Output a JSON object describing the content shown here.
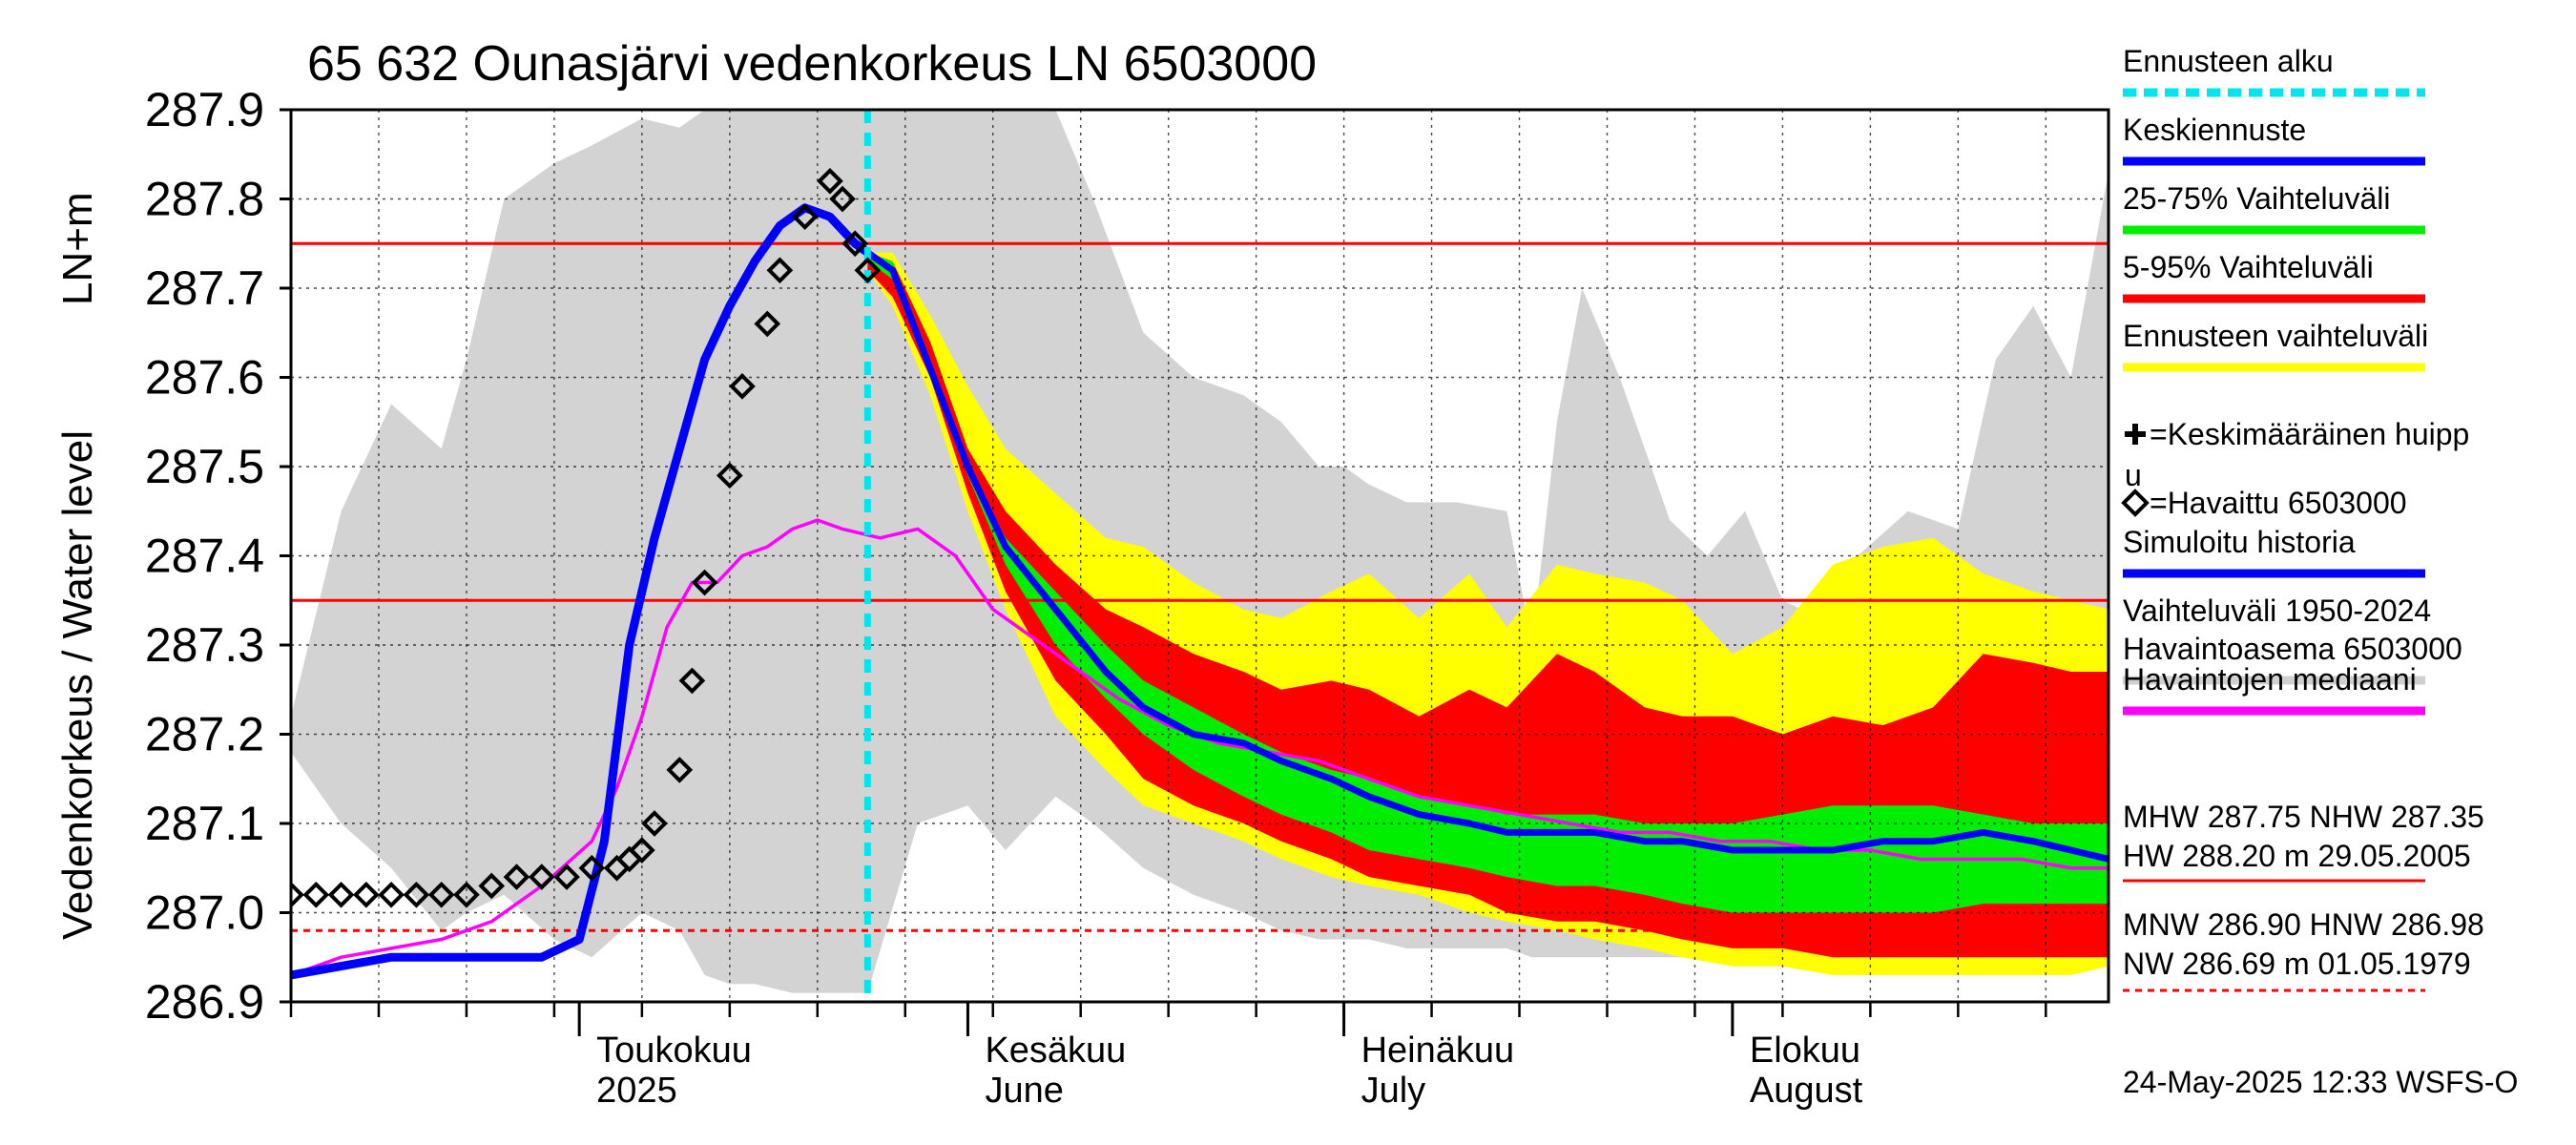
{
  "chart_data": {
    "type": "area",
    "title": "65 632 Ounasjärvi vedenkorkeus LN 6503000",
    "ylabel_line1": "LN+m",
    "ylabel_line2": "Vedenkorkeus / Water level",
    "ylim": [
      286.9,
      287.9
    ],
    "yticks": [
      "286.9",
      "287.0",
      "287.1",
      "287.2",
      "287.3",
      "287.4",
      "287.5",
      "287.6",
      "287.7",
      "287.8",
      "287.9"
    ],
    "xlim": [
      "2025-04-08",
      "2025-08-31"
    ],
    "month_labels": [
      {
        "date": "2025-05-01",
        "fi": "Toukokuu",
        "en": "2025"
      },
      {
        "date": "2025-06-01",
        "fi": "Kesäkuu",
        "en": "June"
      },
      {
        "date": "2025-07-01",
        "fi": "Heinäkuu",
        "en": "July"
      },
      {
        "date": "2025-08-01",
        "fi": "Elokuu",
        "en": "August"
      }
    ],
    "forecast_start": "2025-05-24",
    "reference_lines": [
      {
        "name": "MHW",
        "value": 287.75,
        "style": "solid"
      },
      {
        "name": "NHW",
        "value": 287.35,
        "style": "solid"
      },
      {
        "name": "HNW",
        "value": 286.98,
        "style": "dashed"
      }
    ],
    "series": [
      {
        "name": "Vaihteluväli 1950-2024 Havaintoasema 6503000",
        "kind": "band",
        "x": [
          "2025-04-08",
          "2025-04-12",
          "2025-04-16",
          "2025-04-20",
          "2025-04-22",
          "2025-04-25",
          "2025-04-29",
          "2025-05-02",
          "2025-05-06",
          "2025-05-09",
          "2025-05-11",
          "2025-05-13",
          "2025-05-15",
          "2025-05-18",
          "2025-05-21",
          "2025-05-24",
          "2025-05-28",
          "2025-06-01",
          "2025-06-04",
          "2025-06-06",
          "2025-06-08",
          "2025-06-11",
          "2025-06-15",
          "2025-06-19",
          "2025-06-23",
          "2025-06-26",
          "2025-06-29",
          "2025-07-01",
          "2025-07-03",
          "2025-07-06",
          "2025-07-10",
          "2025-07-14",
          "2025-07-16",
          "2025-07-18",
          "2025-07-20",
          "2025-07-23",
          "2025-07-27",
          "2025-07-30",
          "2025-08-02",
          "2025-08-05",
          "2025-08-08",
          "2025-08-11",
          "2025-08-15",
          "2025-08-19",
          "2025-08-22",
          "2025-08-25",
          "2025-08-28",
          "2025-08-31"
        ],
        "upper": [
          287.22,
          287.45,
          287.57,
          287.52,
          287.62,
          287.8,
          287.84,
          287.86,
          287.89,
          287.88,
          287.9,
          287.9,
          287.9,
          287.9,
          287.9,
          287.9,
          287.9,
          287.9,
          287.9,
          287.9,
          287.9,
          287.8,
          287.65,
          287.6,
          287.58,
          287.55,
          287.5,
          287.5,
          287.48,
          287.46,
          287.46,
          287.45,
          287.3,
          287.55,
          287.7,
          287.6,
          287.44,
          287.4,
          287.45,
          287.35,
          287.33,
          287.4,
          287.45,
          287.43,
          287.62,
          287.68,
          287.6,
          287.83
        ],
        "lower": [
          287.18,
          287.1,
          287.05,
          286.98,
          287.0,
          287.02,
          286.97,
          286.95,
          287.0,
          286.98,
          286.93,
          286.92,
          286.92,
          286.91,
          286.91,
          286.91,
          287.1,
          287.12,
          287.07,
          287.1,
          287.13,
          287.1,
          287.05,
          287.02,
          287.0,
          286.98,
          286.97,
          286.97,
          286.97,
          286.96,
          286.96,
          286.96,
          286.95,
          286.95,
          286.95,
          286.95,
          286.95,
          286.95,
          286.95,
          286.95,
          286.95,
          286.95,
          286.95,
          286.95,
          286.95,
          286.95,
          286.95,
          286.95
        ]
      },
      {
        "name": "Ennusteen vaihteluväli",
        "kind": "band",
        "x": [
          "2025-05-24",
          "2025-05-26",
          "2025-05-29",
          "2025-06-01",
          "2025-06-04",
          "2025-06-08",
          "2025-06-12",
          "2025-06-15",
          "2025-06-19",
          "2025-06-23",
          "2025-06-26",
          "2025-06-30",
          "2025-07-03",
          "2025-07-07",
          "2025-07-11",
          "2025-07-14",
          "2025-07-18",
          "2025-07-21",
          "2025-07-25",
          "2025-07-28",
          "2025-08-01",
          "2025-08-05",
          "2025-08-09",
          "2025-08-13",
          "2025-08-17",
          "2025-08-21",
          "2025-08-25",
          "2025-08-28",
          "2025-08-31"
        ],
        "upper": [
          287.74,
          287.74,
          287.67,
          287.59,
          287.52,
          287.47,
          287.42,
          287.41,
          287.37,
          287.34,
          287.33,
          287.36,
          287.38,
          287.33,
          287.38,
          287.32,
          287.39,
          287.38,
          287.37,
          287.35,
          287.29,
          287.32,
          287.39,
          287.41,
          287.42,
          287.38,
          287.36,
          287.35,
          287.34
        ],
        "lower": [
          287.72,
          287.68,
          287.58,
          287.45,
          287.34,
          287.22,
          287.16,
          287.12,
          287.1,
          287.08,
          287.06,
          287.04,
          287.03,
          287.02,
          287.0,
          286.99,
          286.98,
          286.97,
          286.96,
          286.95,
          286.94,
          286.94,
          286.93,
          286.93,
          286.93,
          286.93,
          286.93,
          286.93,
          286.94
        ]
      },
      {
        "name": "5-95% Vaihteluväli",
        "kind": "band",
        "x": [
          "2025-05-24",
          "2025-05-26",
          "2025-05-29",
          "2025-06-01",
          "2025-06-04",
          "2025-06-08",
          "2025-06-12",
          "2025-06-15",
          "2025-06-19",
          "2025-06-23",
          "2025-06-26",
          "2025-06-30",
          "2025-07-03",
          "2025-07-07",
          "2025-07-11",
          "2025-07-14",
          "2025-07-18",
          "2025-07-21",
          "2025-07-25",
          "2025-07-28",
          "2025-08-01",
          "2025-08-05",
          "2025-08-09",
          "2025-08-13",
          "2025-08-17",
          "2025-08-21",
          "2025-08-25",
          "2025-08-28",
          "2025-08-31"
        ],
        "upper": [
          287.74,
          287.73,
          287.64,
          287.52,
          287.45,
          287.39,
          287.34,
          287.32,
          287.29,
          287.27,
          287.25,
          287.26,
          287.25,
          287.22,
          287.25,
          287.23,
          287.29,
          287.27,
          287.23,
          287.22,
          287.22,
          287.2,
          287.22,
          287.21,
          287.23,
          287.29,
          287.28,
          287.27,
          287.27
        ],
        "lower": [
          287.72,
          287.69,
          287.6,
          287.47,
          287.36,
          287.26,
          287.2,
          287.15,
          287.12,
          287.1,
          287.08,
          287.06,
          287.04,
          287.03,
          287.02,
          287.0,
          286.99,
          286.99,
          286.98,
          286.97,
          286.96,
          286.96,
          286.95,
          286.95,
          286.95,
          286.95,
          286.95,
          286.95,
          286.95
        ]
      },
      {
        "name": "25-75% Vaihteluväli",
        "kind": "band",
        "x": [
          "2025-05-24",
          "2025-05-26",
          "2025-05-29",
          "2025-06-01",
          "2025-06-04",
          "2025-06-08",
          "2025-06-12",
          "2025-06-15",
          "2025-06-19",
          "2025-06-23",
          "2025-06-26",
          "2025-06-30",
          "2025-07-03",
          "2025-07-07",
          "2025-07-11",
          "2025-07-14",
          "2025-07-18",
          "2025-07-21",
          "2025-07-25",
          "2025-07-28",
          "2025-08-01",
          "2025-08-05",
          "2025-08-09",
          "2025-08-13",
          "2025-08-17",
          "2025-08-21",
          "2025-08-25",
          "2025-08-28",
          "2025-08-31"
        ],
        "upper": [
          287.74,
          287.73,
          287.62,
          287.5,
          287.42,
          287.36,
          287.3,
          287.26,
          287.23,
          287.2,
          287.18,
          287.16,
          287.15,
          287.13,
          287.12,
          287.11,
          287.11,
          287.11,
          287.1,
          287.1,
          287.1,
          287.11,
          287.12,
          287.12,
          287.12,
          287.11,
          287.1,
          287.1,
          287.1
        ],
        "lower": [
          287.73,
          287.71,
          287.6,
          287.49,
          287.39,
          287.3,
          287.24,
          287.2,
          287.16,
          287.13,
          287.11,
          287.09,
          287.07,
          287.06,
          287.05,
          287.04,
          287.03,
          287.03,
          287.02,
          287.01,
          287.0,
          287.0,
          287.0,
          287.0,
          287.0,
          287.01,
          287.01,
          287.01,
          287.01
        ]
      },
      {
        "name": "Havaintojen mediaani",
        "kind": "line",
        "x": [
          "2025-04-08",
          "2025-04-12",
          "2025-04-16",
          "2025-04-20",
          "2025-04-24",
          "2025-04-28",
          "2025-05-02",
          "2025-05-04",
          "2025-05-06",
          "2025-05-08",
          "2025-05-10",
          "2025-05-12",
          "2025-05-14",
          "2025-05-16",
          "2025-05-18",
          "2025-05-20",
          "2025-05-22",
          "2025-05-25",
          "2025-05-28",
          "2025-05-31",
          "2025-06-03",
          "2025-06-06",
          "2025-06-09",
          "2025-06-13",
          "2025-06-17",
          "2025-06-21",
          "2025-06-25",
          "2025-06-29",
          "2025-07-03",
          "2025-07-07",
          "2025-07-11",
          "2025-07-15",
          "2025-07-19",
          "2025-07-23",
          "2025-07-27",
          "2025-07-31",
          "2025-08-04",
          "2025-08-08",
          "2025-08-12",
          "2025-08-16",
          "2025-08-20",
          "2025-08-24",
          "2025-08-28",
          "2025-08-31"
        ],
        "values": [
          286.93,
          286.95,
          286.96,
          286.97,
          286.99,
          287.03,
          287.08,
          287.14,
          287.22,
          287.32,
          287.37,
          287.37,
          287.4,
          287.41,
          287.43,
          287.44,
          287.43,
          287.42,
          287.43,
          287.4,
          287.34,
          287.31,
          287.28,
          287.24,
          287.21,
          287.19,
          287.18,
          287.17,
          287.15,
          287.13,
          287.12,
          287.11,
          287.1,
          287.09,
          287.09,
          287.08,
          287.08,
          287.07,
          287.07,
          287.06,
          287.06,
          287.06,
          287.05,
          287.05
        ]
      },
      {
        "name": "Simuloitu historia",
        "kind": "line",
        "x": [
          "2025-04-08",
          "2025-04-12",
          "2025-04-16",
          "2025-04-20",
          "2025-04-24",
          "2025-04-28",
          "2025-05-01",
          "2025-05-03",
          "2025-05-05",
          "2025-05-07",
          "2025-05-09",
          "2025-05-11",
          "2025-05-13",
          "2025-05-15",
          "2025-05-17",
          "2025-05-19",
          "2025-05-21",
          "2025-05-23",
          "2025-05-24"
        ],
        "values": [
          286.93,
          286.94,
          286.95,
          286.95,
          286.95,
          286.95,
          286.97,
          287.08,
          287.3,
          287.42,
          287.52,
          287.62,
          287.68,
          287.73,
          287.77,
          287.79,
          287.78,
          287.75,
          287.74
        ]
      },
      {
        "name": "Keskiennuste",
        "kind": "line",
        "x": [
          "2025-05-24",
          "2025-05-26",
          "2025-05-29",
          "2025-06-01",
          "2025-06-04",
          "2025-06-08",
          "2025-06-12",
          "2025-06-15",
          "2025-06-19",
          "2025-06-23",
          "2025-06-26",
          "2025-06-30",
          "2025-07-03",
          "2025-07-07",
          "2025-07-11",
          "2025-07-14",
          "2025-07-18",
          "2025-07-21",
          "2025-07-25",
          "2025-07-28",
          "2025-08-01",
          "2025-08-05",
          "2025-08-09",
          "2025-08-13",
          "2025-08-17",
          "2025-08-21",
          "2025-08-25",
          "2025-08-28",
          "2025-08-31"
        ],
        "values": [
          287.74,
          287.72,
          287.61,
          287.5,
          287.41,
          287.34,
          287.27,
          287.23,
          287.2,
          287.19,
          287.17,
          287.15,
          287.13,
          287.11,
          287.1,
          287.09,
          287.09,
          287.09,
          287.08,
          287.08,
          287.07,
          287.07,
          287.07,
          287.08,
          287.08,
          287.09,
          287.08,
          287.07,
          287.06
        ]
      },
      {
        "name": "Havaittu 6503000",
        "kind": "markers",
        "x": [
          "2025-04-08",
          "2025-04-10",
          "2025-04-12",
          "2025-04-14",
          "2025-04-16",
          "2025-04-18",
          "2025-04-20",
          "2025-04-22",
          "2025-04-24",
          "2025-04-26",
          "2025-04-28",
          "2025-04-30",
          "2025-05-02",
          "2025-05-04",
          "2025-05-05",
          "2025-05-06",
          "2025-05-07",
          "2025-05-09",
          "2025-05-10",
          "2025-05-11",
          "2025-05-13",
          "2025-05-14",
          "2025-05-16",
          "2025-05-17",
          "2025-05-19",
          "2025-05-21",
          "2025-05-22",
          "2025-05-23",
          "2025-05-24"
        ],
        "values": [
          287.02,
          287.02,
          287.02,
          287.02,
          287.02,
          287.02,
          287.02,
          287.02,
          287.03,
          287.04,
          287.04,
          287.04,
          287.05,
          287.05,
          287.06,
          287.07,
          287.1,
          287.16,
          287.26,
          287.37,
          287.49,
          287.59,
          287.66,
          287.72,
          287.78,
          287.82,
          287.8,
          287.75,
          287.72
        ]
      }
    ]
  },
  "legend": [
    {
      "label": "Ennusteen alku",
      "color": "#00e5ee",
      "style": "dashed"
    },
    {
      "label": "Keskiennuste",
      "color": "#0000ff",
      "style": "line"
    },
    {
      "label": "25-75% Vaihteluväli",
      "color": "#00ee00",
      "style": "line"
    },
    {
      "label": "5-95% Vaihteluväli",
      "color": "#ff0000",
      "style": "line"
    },
    {
      "label": "Ennusteen vaihteluväli",
      "color": "#ffff00",
      "style": "line"
    },
    {
      "label": "=Keskimääräinen huipp",
      "label2": "u",
      "color": "#000000",
      "style": "plus"
    },
    {
      "label": "=Havaittu 6503000",
      "color": "#000000",
      "style": "diamond"
    },
    {
      "label": "Simuloitu historia",
      "color": "#0000ff",
      "style": "line"
    },
    {
      "label": "Vaihteluväli 1950-2024",
      "label2": " Havaintoasema 6503000",
      "color": "#d0d0d0",
      "style": "line"
    },
    {
      "label": "Havaintojen mediaani",
      "color": "#ff00ff",
      "style": "line"
    }
  ],
  "stats": {
    "line1": "MHW 287.75 NHW 287.35",
    "line2": "HW 288.20 m 29.05.2005",
    "line3": "MNW 286.90 HNW 286.98",
    "line4": "NW 286.69 m 01.05.1979"
  },
  "footer": "24-May-2025 12:33 WSFS-O",
  "colors": {
    "history_band": "#d3d3d3",
    "forecast_band": "#ffff00",
    "band_5_95": "#ff0000",
    "band_25_75": "#00ee00",
    "mean_forecast": "#0000ff",
    "simulated": "#0000ff",
    "median": "#ff00ff",
    "forecast_start": "#00e5ee",
    "reference": "#ff0000"
  }
}
